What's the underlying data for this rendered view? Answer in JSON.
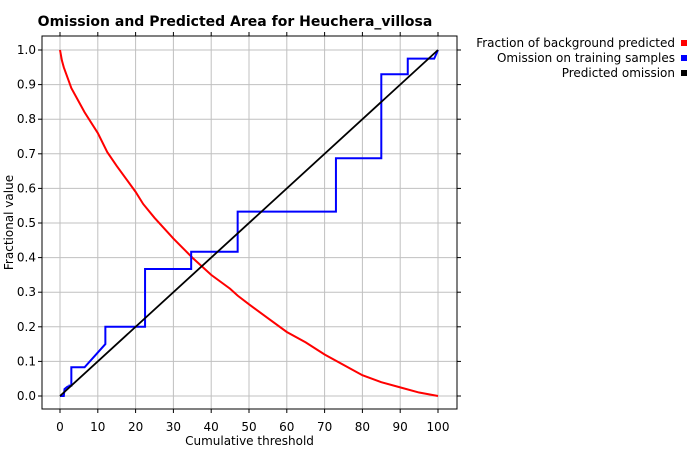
{
  "chart_data": {
    "type": "line",
    "title": "Omission and Predicted Area for Heuchera_villosa",
    "xlabel": "Cumulative threshold",
    "ylabel": "Fractional value",
    "xlim": [
      0,
      100
    ],
    "ylim": [
      0,
      1
    ],
    "x_ticks": [
      "0",
      "10",
      "20",
      "30",
      "40",
      "50",
      "60",
      "70",
      "80",
      "90",
      "100"
    ],
    "y_ticks": [
      "0.0",
      "0.1",
      "0.2",
      "0.3",
      "0.4",
      "0.5",
      "0.6",
      "0.7",
      "0.8",
      "0.9",
      "1.0"
    ],
    "grid": true,
    "legend_position": "top-right, outside plot",
    "series": [
      {
        "name": "Fraction of background predicted",
        "color": "#ff0000",
        "x": [
          0,
          0.5,
          1,
          2,
          3,
          5,
          6.5,
          10,
          12.5,
          15,
          20,
          22,
          25,
          30,
          35,
          40,
          45,
          47,
          50,
          55,
          60,
          65,
          70,
          75,
          80,
          85,
          90,
          95,
          100
        ],
        "y": [
          1.0,
          0.97,
          0.95,
          0.92,
          0.89,
          0.85,
          0.82,
          0.76,
          0.705,
          0.665,
          0.59,
          0.555,
          0.515,
          0.455,
          0.4,
          0.35,
          0.31,
          0.29,
          0.265,
          0.225,
          0.185,
          0.155,
          0.12,
          0.09,
          0.06,
          0.04,
          0.025,
          0.01,
          0.0
        ]
      },
      {
        "name": "Omission on training samples",
        "color": "#0000ff",
        "x": [
          0,
          1,
          1.2,
          1.2,
          2,
          2.5,
          2.5,
          3,
          3,
          6.5,
          12,
          12,
          22.5,
          22.5,
          34.7,
          34.7,
          47,
          47,
          73,
          73,
          85,
          85,
          92,
          92,
          99,
          100
        ],
        "y": [
          0.0,
          0.0,
          0.02,
          0.02,
          0.027,
          0.027,
          0.03,
          0.03,
          0.083,
          0.083,
          0.15,
          0.2,
          0.2,
          0.367,
          0.367,
          0.417,
          0.417,
          0.533,
          0.533,
          0.687,
          0.687,
          0.93,
          0.93,
          0.975,
          0.975,
          1.0
        ]
      },
      {
        "name": "Predicted omission",
        "color": "#000000",
        "x": [
          0,
          100
        ],
        "y": [
          0,
          1
        ]
      }
    ]
  }
}
